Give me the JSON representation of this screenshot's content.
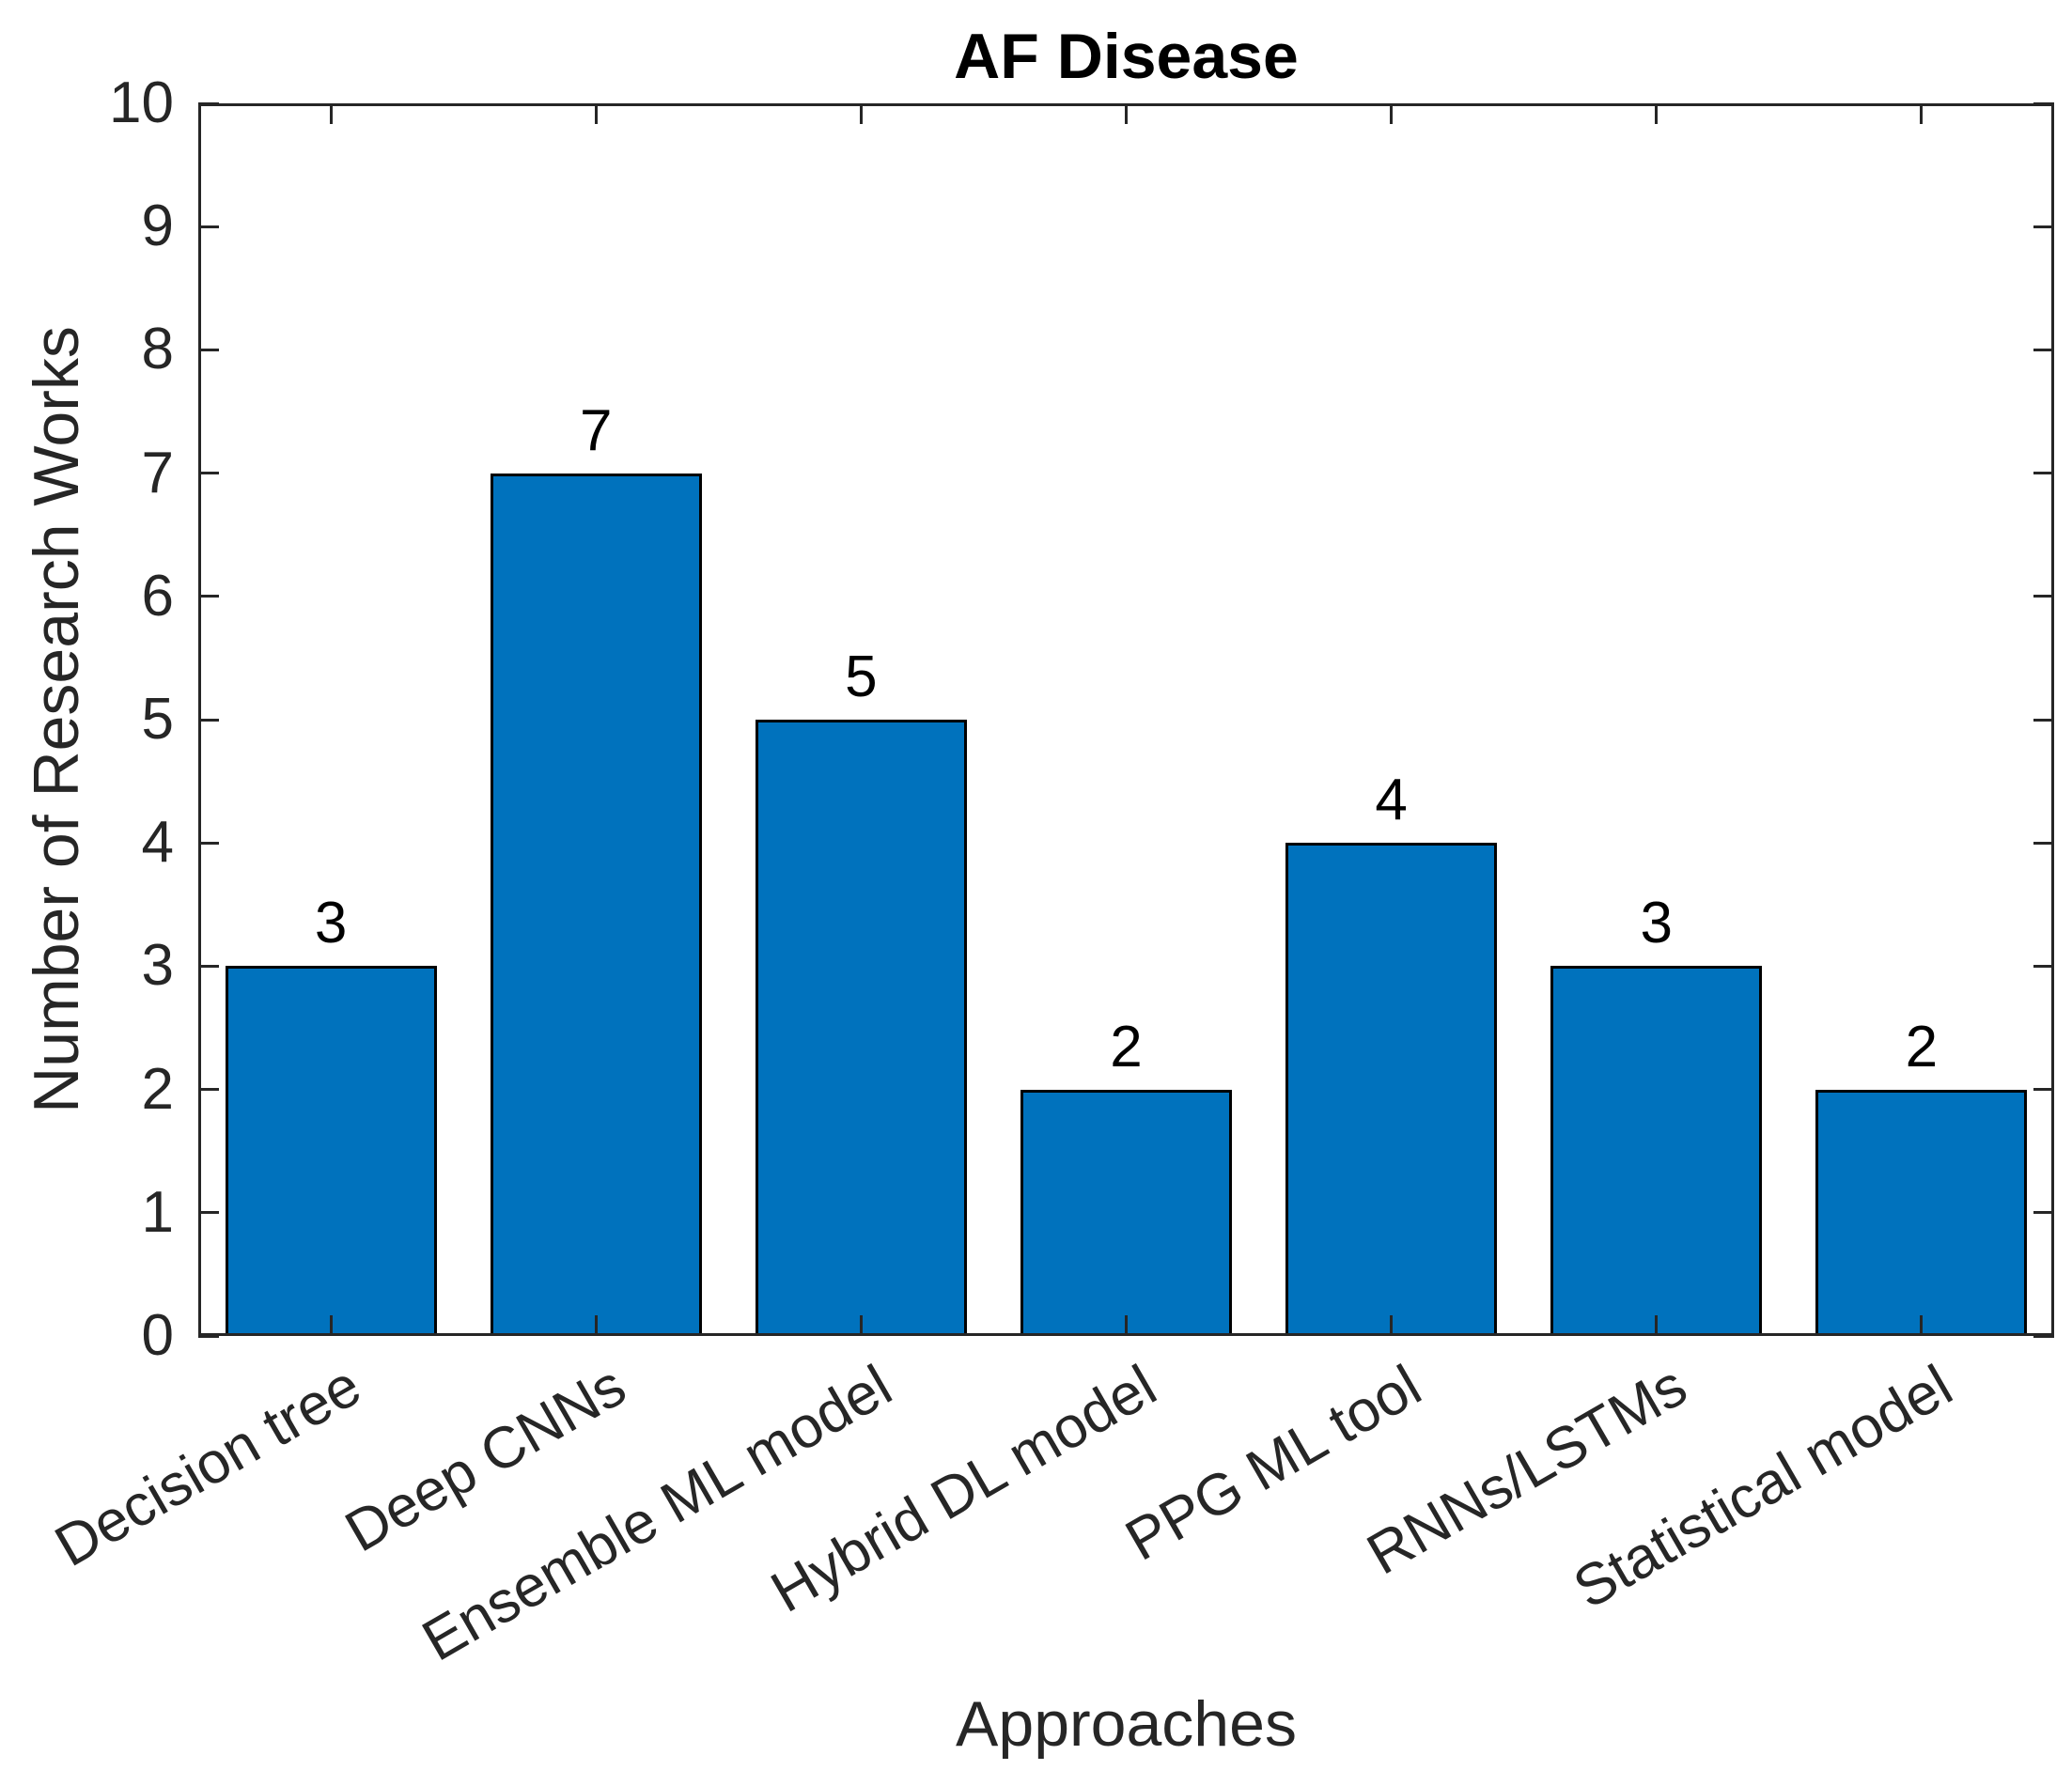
{
  "chart_data": {
    "type": "bar",
    "title": "AF Disease",
    "xlabel": "Approaches",
    "ylabel": "Number of Research Works",
    "categories": [
      "Decision tree",
      "Deep CNNs",
      "Ensemble ML model",
      "Hybrid DL model",
      "PPG ML tool",
      "RNNs/LSTMs",
      "Statistical model"
    ],
    "values": [
      3,
      7,
      5,
      2,
      4,
      3,
      2
    ],
    "bar_value_labels": [
      "3",
      "7",
      "5",
      "2",
      "4",
      "3",
      "2"
    ],
    "ylim": [
      0,
      10
    ],
    "yticks": [
      0,
      1,
      2,
      3,
      4,
      5,
      6,
      7,
      8,
      9,
      10
    ],
    "ytick_labels": [
      "0",
      "1",
      "2",
      "3",
      "4",
      "5",
      "6",
      "7",
      "8",
      "9",
      "10"
    ],
    "x_tick_label_rotation_deg": 30,
    "grid": false,
    "legend": "none",
    "tick_direction": "in",
    "box": true,
    "colors": {
      "bar_fill": "#0072BD",
      "bar_edge": "#000000",
      "axis": "#262626",
      "tick_label": "#262626",
      "title": "#000000",
      "value_label": "#000000",
      "background": "#FFFFFF"
    }
  }
}
